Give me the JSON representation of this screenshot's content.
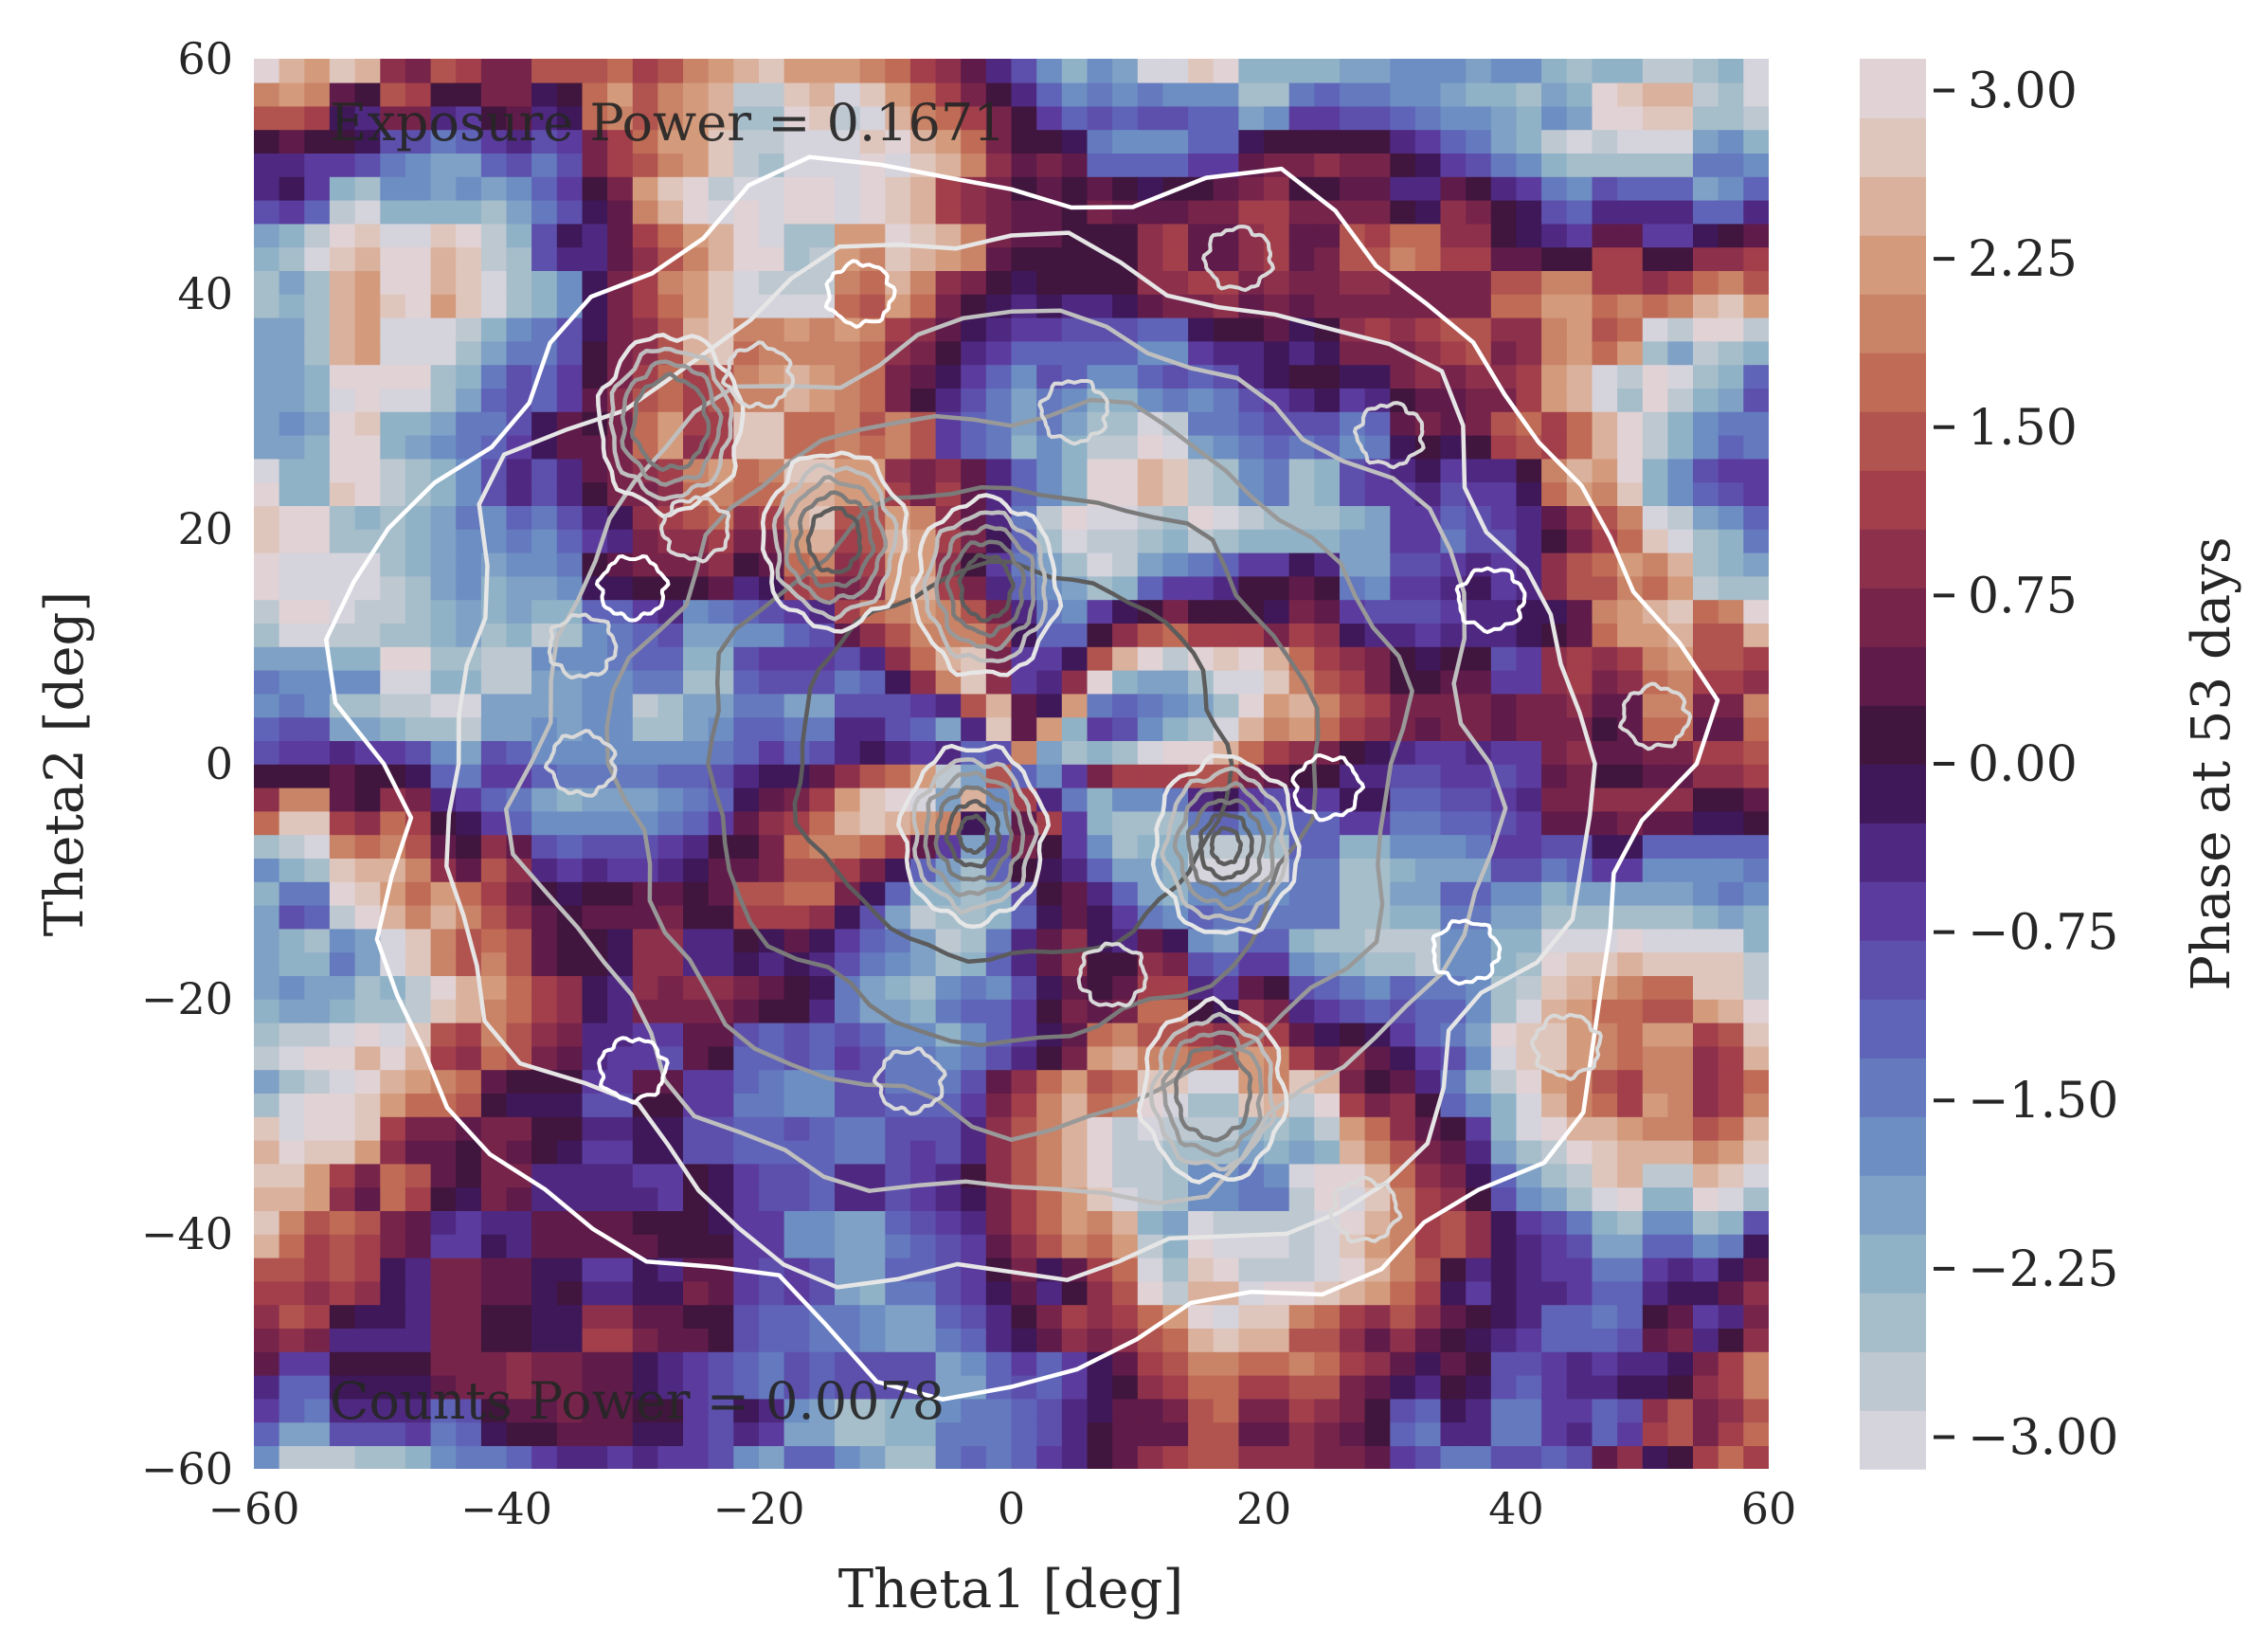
{
  "chart_data": {
    "type": "heatmap",
    "title": "",
    "xlabel": "Theta1 [deg]",
    "ylabel": "Theta2 [deg]",
    "xlim": [
      -60,
      60
    ],
    "ylim": [
      -60,
      60
    ],
    "x_ticks": [
      "−60",
      "−40",
      "−20",
      "0",
      "20",
      "40",
      "60"
    ],
    "y_ticks": [
      "60",
      "40",
      "20",
      "0",
      "−20",
      "−40",
      "−60"
    ],
    "annotations": {
      "exposure_power": "Exposure Power = 0.1671",
      "counts_power": "Counts Power = 0.0078"
    },
    "colorbar": {
      "label": "Phase at 53 days",
      "range": [
        -3.14159,
        3.14159
      ],
      "ticks": [
        "3.00",
        "2.25",
        "1.50",
        "0.75",
        "0.00",
        "−0.75",
        "−1.50",
        "−2.25",
        "−3.00"
      ],
      "tick_values": [
        3.0,
        2.25,
        1.5,
        0.75,
        0.0,
        -0.75,
        -1.5,
        -2.25,
        -3.0
      ],
      "colormap": "twilight_shifted"
    },
    "grid": false,
    "contours": {
      "description_colors": [
        "#ffffff",
        "#e6e6e6",
        "#bfbfbf",
        "#999999",
        "#7a7a7a",
        "#5c5c5c"
      ],
      "peaks": [
        {
          "x": -3,
          "y": -6,
          "level": 6
        },
        {
          "x": 17,
          "y": -7,
          "level": 6
        },
        {
          "x": -27,
          "y": 29,
          "level": 4
        },
        {
          "x": 16,
          "y": -28,
          "level": 4
        },
        {
          "x": -14,
          "y": 19,
          "level": 5
        },
        {
          "x": -2,
          "y": 15,
          "level": 5
        }
      ]
    }
  }
}
